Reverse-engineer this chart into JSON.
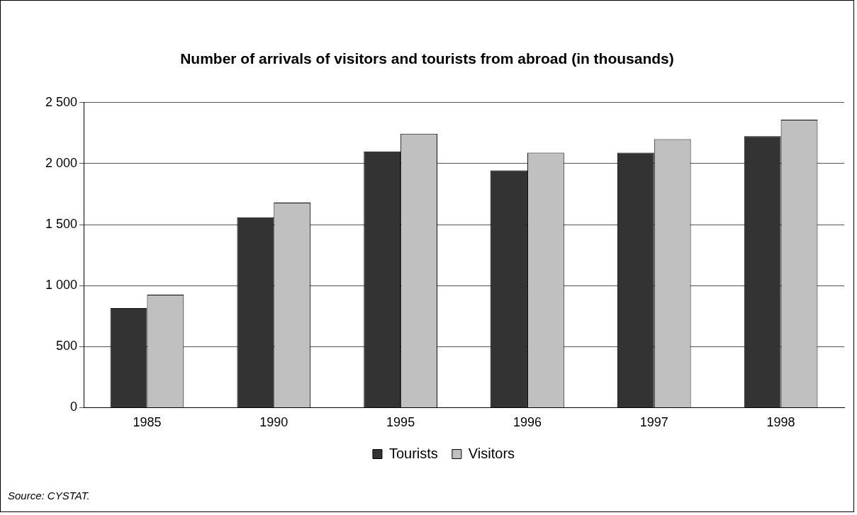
{
  "chart_data": {
    "type": "bar",
    "title": "Number of arrivals of visitors and tourists from abroad (in thousands)",
    "categories": [
      "1985",
      "1990",
      "1995",
      "1996",
      "1997",
      "1998"
    ],
    "series": [
      {
        "name": "Tourists",
        "color": "#333333",
        "values": [
          815,
          1560,
          2100,
          1945,
          2090,
          2225
        ]
      },
      {
        "name": "Visitors",
        "color": "#c0c0c0",
        "values": [
          925,
          1680,
          2245,
          2090,
          2200,
          2360
        ]
      }
    ],
    "ylim": [
      0,
      2500
    ],
    "yticks": [
      {
        "value": 0,
        "label": "0"
      },
      {
        "value": 500,
        "label": "500"
      },
      {
        "value": 1000,
        "label": "1 000"
      },
      {
        "value": 1500,
        "label": "1 500"
      },
      {
        "value": 2000,
        "label": "2 000"
      },
      {
        "value": 2500,
        "label": "2 500"
      }
    ],
    "grid": "y",
    "legend": "bottom",
    "annotations": [
      "Source: CYSTAT."
    ]
  }
}
